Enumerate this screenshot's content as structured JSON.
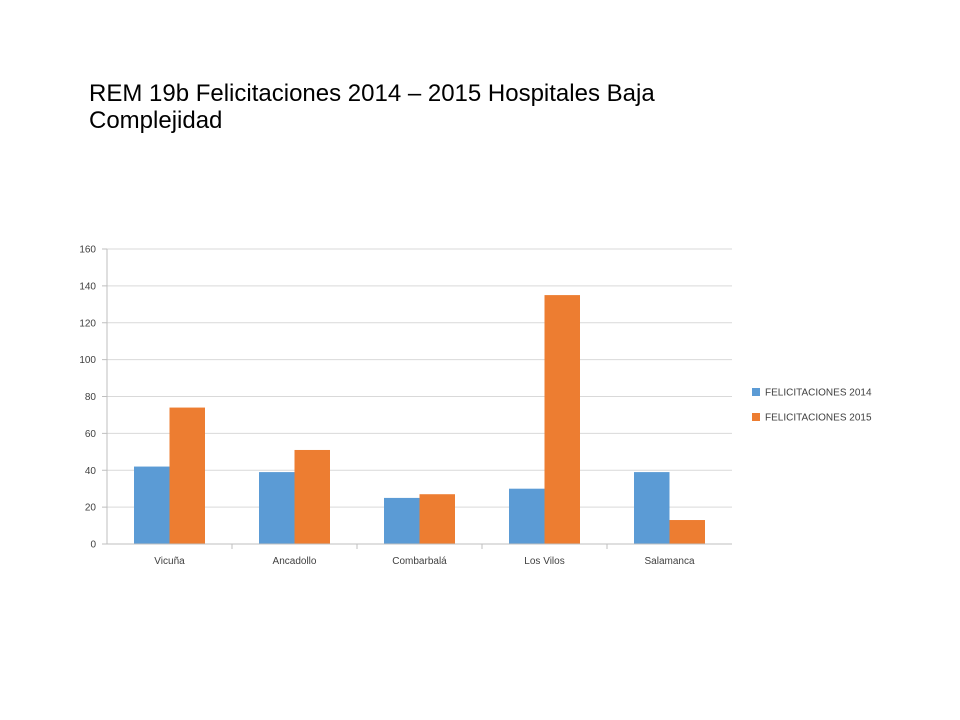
{
  "chart_data": {
    "type": "bar",
    "title": "REM 19b Felicitaciones 2014 – 2015 Hospitales Baja Complejidad",
    "xlabel": "",
    "ylabel": "",
    "categories": [
      "Vicuña",
      "Ancadollo",
      "Combarbalá",
      "Los Vilos",
      "Salamanca"
    ],
    "series": [
      {
        "name": "FELICITACIONES 2014",
        "values": [
          42,
          39,
          25,
          30,
          39
        ],
        "color": "#5B9BD5"
      },
      {
        "name": "FELICITACIONES 2015",
        "values": [
          74,
          51,
          27,
          135,
          13
        ],
        "color": "#ED7D31"
      }
    ],
    "ylim": [
      0,
      160
    ],
    "yticks": [
      "0",
      "20",
      "40",
      "60",
      "80",
      "100",
      "120",
      "140",
      "160"
    ],
    "grid": true,
    "legend": "right"
  }
}
